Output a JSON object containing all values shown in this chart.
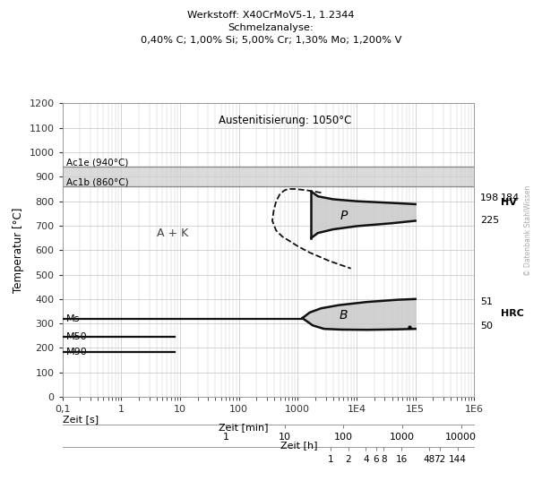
{
  "title_line1": "Werkstoff: X40CrMoV5-1, 1.2344",
  "title_line2": "Schmelzanalyse:",
  "title_line3": "0,40% C; 1,00% Si; 5,00% Cr; 1,30% Mo; 1,200% V",
  "austenitisierung": "Austenitisierung: 1050°C",
  "ylabel": "Temperatur [°C]",
  "xlabel_s": "Zeit [s]",
  "xlabel_min": "Zeit [min]",
  "xlabel_h": "Zeit [h]",
  "ylim": [
    0,
    1200
  ],
  "xlim": [
    0.1,
    1000000
  ],
  "ac1e_temp": 940,
  "ac1e_label": "Ac1e (940°C)",
  "ac1b_temp": 860,
  "ac1b_label": "Ac1b (860°C)",
  "ms_temp": 320,
  "ms_label": "Ms",
  "m50_temp": 245,
  "m50_label": "M50",
  "m90_temp": 185,
  "m90_label": "M90",
  "ak_label": "A + K",
  "p_label": "P",
  "b_label": "B",
  "hv_label": "HV",
  "hrc_label": "HRC",
  "hv_198": "198",
  "hv_184": "184",
  "hv_225": "225",
  "hrc_51": "51",
  "hrc_50": "50",
  "watermark": "© Datenbank StahlWissen",
  "bg_color": "#ffffff",
  "grid_color": "#cccccc",
  "ac_band_color": "#d0d0d0",
  "curve_color": "#111111",
  "fill_color": "#cccccc",
  "fig_width": 6.05,
  "fig_height": 5.37,
  "dpi": 100,
  "p_dashed_x": [
    500,
    430,
    390,
    370,
    380,
    430,
    520,
    680,
    900,
    1500,
    3500,
    8000
  ],
  "p_dashed_y": [
    830,
    800,
    760,
    720,
    690,
    670,
    655,
    640,
    620,
    595,
    560,
    530
  ],
  "p_solid_nose_x": [
    1800,
    1700,
    1800,
    2500,
    4000,
    8000,
    20000,
    60000,
    100000
  ],
  "p_solid_nose_y": [
    840,
    720,
    660,
    680,
    690,
    700,
    710,
    715,
    720
  ],
  "p_upper_x": [
    1800,
    2500,
    4000,
    8000,
    20000,
    60000,
    100000
  ],
  "p_upper_y": [
    840,
    820,
    808,
    800,
    795,
    790,
    788
  ],
  "p_lower_x": [
    1800,
    2500,
    4000,
    8000,
    20000,
    60000,
    100000
  ],
  "p_lower_y": [
    660,
    680,
    690,
    700,
    710,
    715,
    720
  ],
  "b_upper_x": [
    1200,
    1600,
    2500,
    5000,
    15000,
    50000,
    100000
  ],
  "b_upper_y": [
    322,
    340,
    360,
    375,
    388,
    397,
    400
  ],
  "b_lower_x": [
    1200,
    1600,
    2500,
    5000,
    15000,
    50000,
    100000
  ],
  "b_lower_y": [
    322,
    295,
    280,
    276,
    275,
    276,
    278
  ],
  "ms_x_end": 1200,
  "m50_x_end": 8,
  "m90_x_end": 8,
  "min_tick_xs": [
    60,
    600,
    6000,
    60000,
    600000
  ],
  "min_tick_lbs": [
    "1",
    "10",
    "100",
    "1000",
    "10000"
  ],
  "h_tick_xs": [
    3600,
    7200,
    14400,
    21600,
    28800,
    57600,
    172800,
    259200,
    518400
  ],
  "h_tick_lbs": [
    "1",
    "2",
    "4",
    "6",
    "8",
    "16",
    "48",
    "72",
    "144"
  ]
}
